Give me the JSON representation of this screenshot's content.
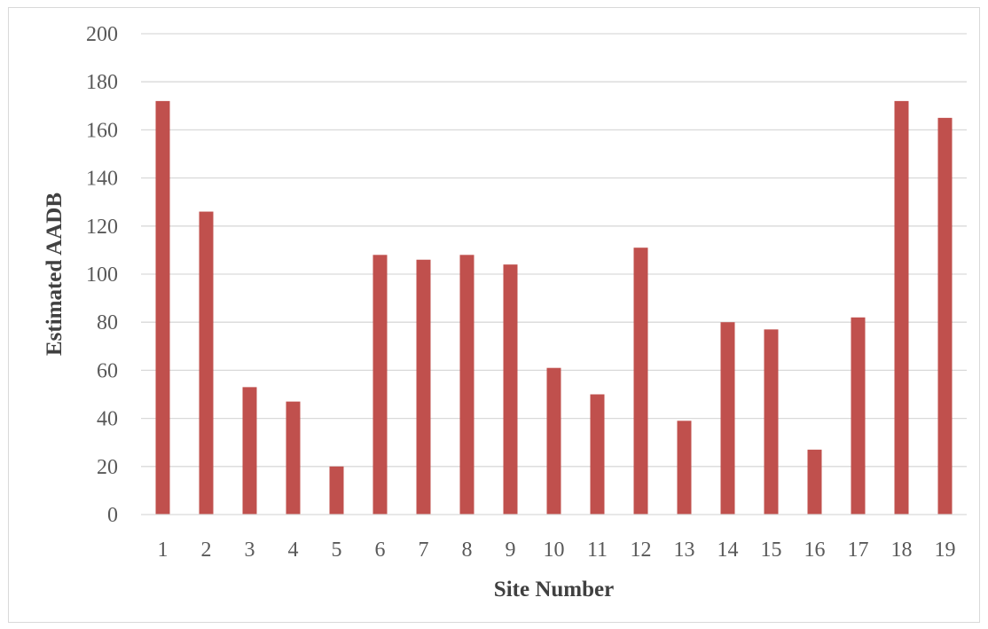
{
  "chart_data": {
    "type": "bar",
    "title": "",
    "xlabel": "Site Number",
    "ylabel": "Estimated AADB",
    "categories": [
      "1",
      "2",
      "3",
      "4",
      "5",
      "6",
      "7",
      "8",
      "9",
      "10",
      "11",
      "12",
      "13",
      "14",
      "15",
      "16",
      "17",
      "18",
      "19"
    ],
    "values": [
      172,
      126,
      53,
      47,
      20,
      108,
      106,
      108,
      104,
      61,
      50,
      111,
      39,
      80,
      77,
      27,
      82,
      172,
      165
    ],
    "ylim": [
      0,
      200
    ],
    "yticks": [
      "0",
      "20",
      "40",
      "60",
      "80",
      "100",
      "120",
      "140",
      "160",
      "180",
      "200"
    ],
    "grid": true,
    "legend": "none",
    "colors": {
      "bar": "#c0504d",
      "grid": "#d9d9d9",
      "frame": "#d9d9d9",
      "tick_text": "#595959",
      "axis_title_text": "#404040"
    }
  }
}
